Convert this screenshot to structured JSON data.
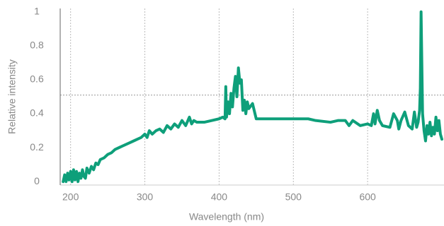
{
  "chart_data": {
    "type": "line",
    "xlabel": "Wavelength (nm)",
    "ylabel": "Relative intensity",
    "x": [
      190,
      192,
      194,
      196,
      198,
      200,
      202,
      204,
      206,
      208,
      210,
      212,
      214,
      216,
      218,
      220,
      222,
      225,
      228,
      231,
      234,
      237,
      240,
      245,
      250,
      255,
      260,
      265,
      270,
      275,
      280,
      285,
      290,
      295,
      300,
      303,
      306,
      310,
      315,
      320,
      325,
      330,
      335,
      340,
      345,
      350,
      355,
      360,
      363,
      366,
      370,
      380,
      390,
      400,
      405,
      408,
      409,
      410,
      412,
      414,
      416,
      418,
      420,
      422,
      424,
      426,
      428,
      430,
      432,
      434,
      436,
      438,
      440,
      445,
      450,
      470,
      500,
      520,
      530,
      550,
      560,
      570,
      575,
      580,
      590,
      600,
      605,
      608,
      610,
      613,
      616,
      620,
      630,
      635,
      640,
      642,
      645,
      650,
      655,
      660,
      663,
      666,
      668,
      670,
      671,
      672,
      674,
      676,
      678,
      680,
      682,
      684,
      686,
      688,
      690,
      692,
      694,
      696,
      698,
      700
    ],
    "series": [
      {
        "name": "Relative intensity",
        "color": "#0e9f7a",
        "values": [
          0,
          0.04,
          0,
          0.05,
          0.01,
          0.06,
          0,
          0.07,
          0.01,
          0.06,
          0,
          0.05,
          0.02,
          0.07,
          0.03,
          0.02,
          0.08,
          0.05,
          0.09,
          0.07,
          0.11,
          0.1,
          0.13,
          0.14,
          0.16,
          0.17,
          0.19,
          0.2,
          0.21,
          0.22,
          0.23,
          0.24,
          0.25,
          0.26,
          0.28,
          0.26,
          0.3,
          0.28,
          0.3,
          0.31,
          0.29,
          0.33,
          0.31,
          0.34,
          0.32,
          0.36,
          0.33,
          0.38,
          0.34,
          0.36,
          0.35,
          0.35,
          0.36,
          0.37,
          0.38,
          0.37,
          0.56,
          0.38,
          0.47,
          0.4,
          0.52,
          0.44,
          0.55,
          0.62,
          0.5,
          0.67,
          0.58,
          0.6,
          0.42,
          0.48,
          0.4,
          0.47,
          0.43,
          0.46,
          0.37,
          0.37,
          0.37,
          0.37,
          0.36,
          0.35,
          0.36,
          0.36,
          0.33,
          0.36,
          0.33,
          0.34,
          0.33,
          0.4,
          0.34,
          0.42,
          0.36,
          0.33,
          0.32,
          0.4,
          0.36,
          0.31,
          0.36,
          0.41,
          0.33,
          0.31,
          0.41,
          0.32,
          0.35,
          0.42,
          0.55,
          1,
          0.4,
          0.3,
          0.24,
          0.33,
          0.28,
          0.35,
          0.27,
          0.32,
          0.28,
          0.38,
          0.3,
          0.36,
          0.28,
          0.25
        ]
      }
    ],
    "xlim": [
      186,
      700
    ],
    "xticks": [
      200,
      300,
      400,
      500,
      600
    ],
    "ylim": [
      -0.02,
      1.02
    ],
    "yticks": [
      0,
      0.2,
      0.4,
      0.6,
      0.8,
      1
    ],
    "grid": true,
    "ref_line": 0.51
  }
}
